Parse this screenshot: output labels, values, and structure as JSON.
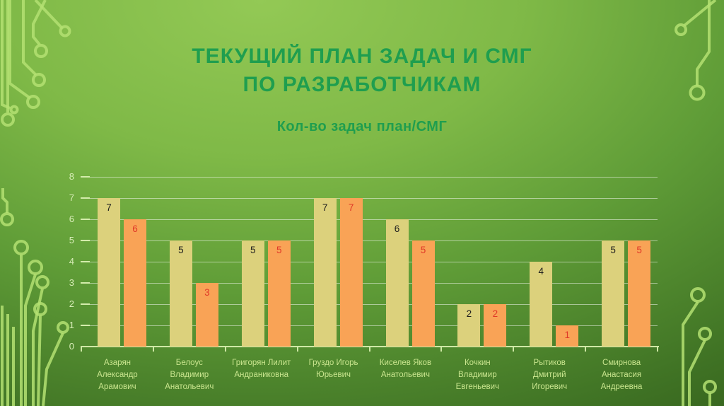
{
  "slide": {
    "title": "ТЕКУЩИЙ ПЛАН ЗАДАЧ И СМГ\nПО РАЗРАБОТЧИКАМ"
  },
  "colors": {
    "title_green": "#1f9e4f",
    "background_light": "#93c955",
    "background_dark": "#254a11",
    "circuit_trace": "#b4e072",
    "gridline": "rgba(255,255,255,0.5)",
    "axis": "#cfe8a6",
    "ytick_label": "#d8edb8",
    "category_label": "#c9e58e"
  },
  "chart_data": {
    "type": "bar",
    "title": "Кол-во задач план/СМГ",
    "categories": [
      "Азарян Александр Арамович",
      "Белоус Владимир Анатольевич",
      "Григорян Лилит Андраниковна",
      "Груздо Игорь Юрьевич",
      "Киселев Яков Анатольевич",
      "Кочкин Владимир Евгеньевич",
      "Рытиков Дмитрий Игоревич",
      "Смирнова Анастасия Андреевна"
    ],
    "series": [
      {
        "name": "план",
        "color": "#dcd17c",
        "label_color": "#1e1e1e",
        "values": [
          7,
          5,
          5,
          7,
          6,
          2,
          4,
          5
        ]
      },
      {
        "name": "СМГ",
        "color": "#f9a356",
        "label_color": "#e03828",
        "values": [
          6,
          3,
          5,
          7,
          5,
          2,
          1,
          5
        ]
      }
    ],
    "ylim": [
      0,
      8
    ],
    "yticks": [
      0,
      1,
      2,
      3,
      4,
      5,
      6,
      7,
      8
    ],
    "grid": true,
    "legend": "none"
  }
}
